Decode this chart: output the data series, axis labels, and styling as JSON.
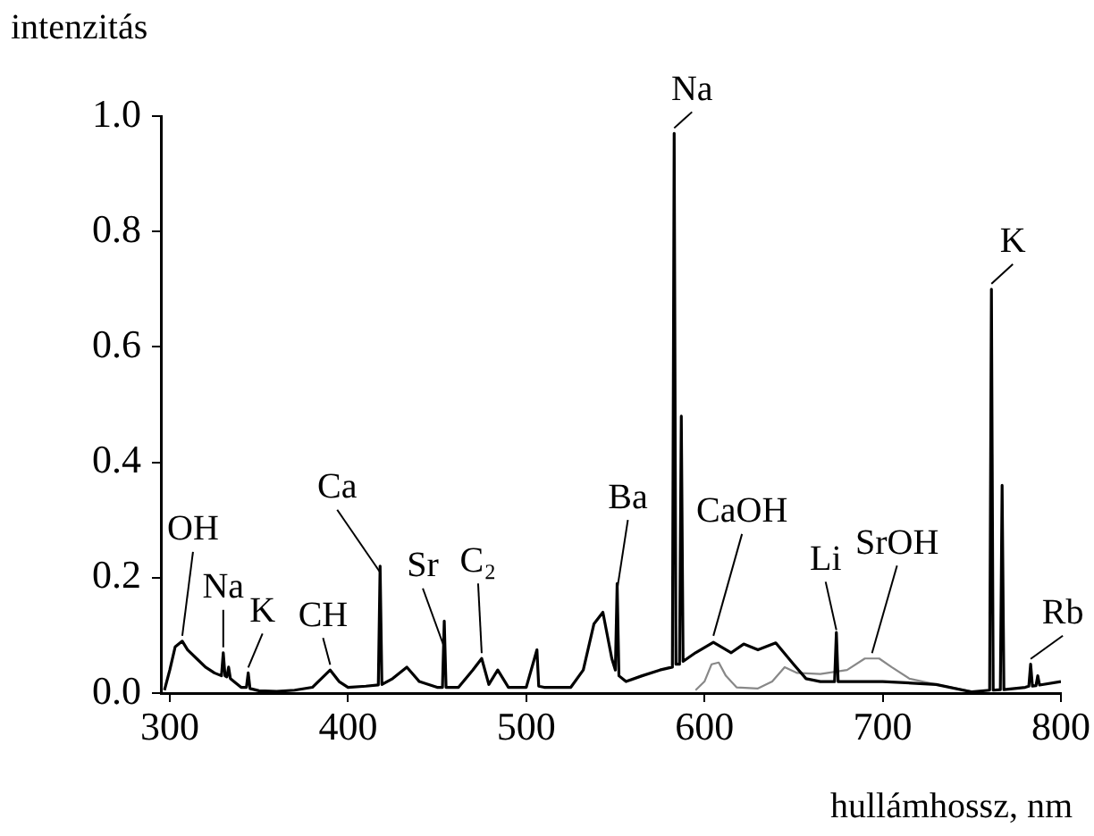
{
  "chart_data": {
    "type": "line",
    "ylabel": "intenzitás",
    "xlabel": "hullámhossz, nm",
    "xlim": [
      295,
      800
    ],
    "ylim": [
      0,
      1.0
    ],
    "xticks": [
      300,
      400,
      500,
      600,
      700,
      800
    ],
    "yticks": [
      {
        "value": 0,
        "label": "0.0"
      },
      0.2,
      0.4,
      0.6,
      0.8,
      {
        "value": 1.0,
        "label": "1.0"
      }
    ],
    "grid": false,
    "legend": false,
    "marker": "none",
    "line_style": "solid",
    "series": [
      {
        "color": "#000000",
        "x": [
          297,
          300,
          303,
          307,
          310,
          315,
          320,
          325,
          329,
          330,
          331,
          332,
          333,
          334,
          340,
          343,
          344,
          345,
          350,
          360,
          370,
          380,
          385,
          390,
          395,
          400,
          410,
          417,
          418,
          419,
          425,
          433,
          440,
          450,
          453,
          454,
          455,
          462,
          470,
          475,
          479,
          484,
          490,
          500,
          506,
          507,
          510,
          525,
          532,
          538,
          543,
          548,
          550,
          551,
          552,
          556,
          565,
          575,
          582,
          583,
          584,
          586,
          587,
          588,
          595,
          605,
          615,
          622,
          630,
          640,
          650,
          657,
          665,
          673,
          674,
          675,
          700,
          730,
          750,
          760,
          761,
          762,
          766,
          767,
          768,
          780,
          782,
          783,
          784,
          786,
          787,
          788,
          800
        ],
        "values": [
          0.005,
          0.04,
          0.08,
          0.09,
          0.075,
          0.06,
          0.045,
          0.035,
          0.03,
          0.07,
          0.03,
          0.028,
          0.045,
          0.025,
          0.01,
          0.01,
          0.035,
          0.008,
          0.004,
          0.003,
          0.005,
          0.01,
          0.025,
          0.04,
          0.02,
          0.01,
          0.012,
          0.014,
          0.22,
          0.015,
          0.025,
          0.045,
          0.02,
          0.01,
          0.01,
          0.125,
          0.01,
          0.01,
          0.04,
          0.06,
          0.015,
          0.04,
          0.01,
          0.01,
          0.075,
          0.012,
          0.01,
          0.01,
          0.04,
          0.12,
          0.14,
          0.06,
          0.04,
          0.19,
          0.03,
          0.02,
          0.03,
          0.04,
          0.045,
          0.97,
          0.05,
          0.05,
          0.48,
          0.055,
          0.07,
          0.088,
          0.07,
          0.085,
          0.075,
          0.087,
          0.05,
          0.025,
          0.02,
          0.02,
          0.105,
          0.02,
          0.02,
          0.015,
          0.002,
          0.005,
          0.7,
          0.005,
          0.006,
          0.36,
          0.006,
          0.01,
          0.012,
          0.05,
          0.012,
          0.013,
          0.03,
          0.014,
          0.02
        ]
      },
      {
        "color": "#888888",
        "x": [
          595,
          600,
          604,
          608,
          612,
          618,
          630,
          638,
          645,
          652,
          665,
          680,
          690,
          698,
          705,
          715,
          730,
          750
        ],
        "values": [
          0.005,
          0.02,
          0.05,
          0.053,
          0.03,
          0.01,
          0.008,
          0.02,
          0.045,
          0.035,
          0.033,
          0.04,
          0.06,
          0.06,
          0.045,
          0.025,
          0.015,
          0.003
        ]
      }
    ],
    "annotations": [
      {
        "text": "OH",
        "x": 307,
        "y": 0.09
      },
      {
        "text": "Na",
        "x": 330,
        "y": 0.07
      },
      {
        "text": "K",
        "x": 344,
        "y": 0.035
      },
      {
        "text": "CH",
        "x": 390,
        "y": 0.04
      },
      {
        "text": "Ca",
        "x": 418,
        "y": 0.2
      },
      {
        "text": "Sr",
        "x": 454,
        "y": 0.07
      },
      {
        "text": "C₂",
        "x": 475,
        "y": 0.06
      },
      {
        "text": "Ba",
        "x": 551,
        "y": 0.17
      },
      {
        "text": "CaOH",
        "x": 605,
        "y": 0.09
      },
      {
        "text": "Li",
        "x": 674,
        "y": 0.1
      },
      {
        "text": "SrOH",
        "x": 694,
        "y": 0.06
      },
      {
        "text": "Na",
        "x": 583,
        "y": 0.97
      },
      {
        "text": "K",
        "x": 761,
        "y": 0.7
      },
      {
        "text": "Rb",
        "x": 783,
        "y": 0.05
      }
    ]
  }
}
